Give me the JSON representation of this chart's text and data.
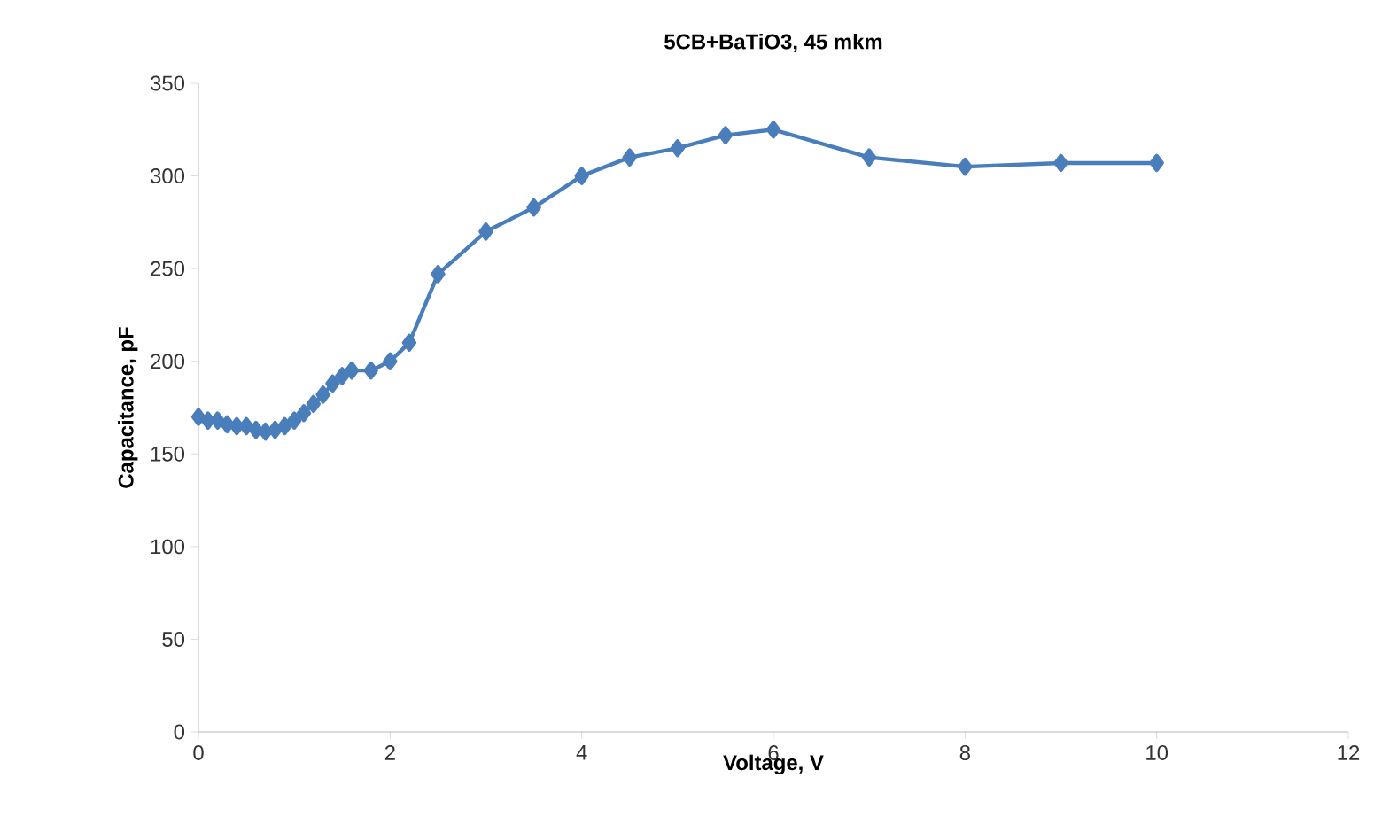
{
  "chart_data": {
    "type": "line",
    "title": "5CB+BaTiO3, 45 mkm",
    "xlabel": "Voltage, V",
    "ylabel": "Capacitance, pF",
    "x": [
      0,
      0.1,
      0.2,
      0.3,
      0.4,
      0.5,
      0.6,
      0.7,
      0.8,
      0.9,
      1.0,
      1.1,
      1.2,
      1.3,
      1.4,
      1.5,
      1.6,
      1.8,
      2.0,
      2.2,
      2.5,
      3,
      3.5,
      4,
      4.5,
      5,
      5.5,
      6,
      7,
      8,
      9,
      10
    ],
    "series": [
      {
        "color": "#4a7ebb",
        "values": [
          170,
          168,
          168,
          166,
          165,
          165,
          163,
          162,
          163,
          165,
          168,
          172,
          177,
          182,
          188,
          192,
          195,
          195,
          200,
          210,
          247,
          270,
          283,
          300,
          310,
          315,
          322,
          325,
          310,
          305,
          307,
          307
        ]
      }
    ],
    "xlim": [
      0,
      12
    ],
    "xticks": [
      0,
      2,
      4,
      6,
      8,
      10,
      12
    ],
    "ylim": [
      0,
      350
    ],
    "yticks": [
      0,
      50,
      100,
      150,
      200,
      250,
      300,
      350
    ],
    "marker": "diamond",
    "line_style": "solid",
    "grid": false
  }
}
